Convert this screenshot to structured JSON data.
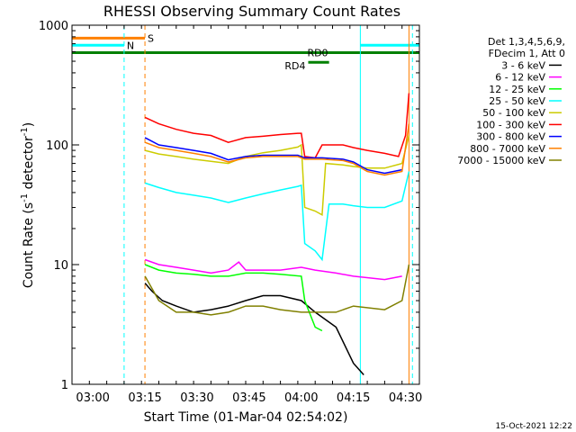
{
  "chart_data": {
    "type": "line",
    "title": "RHESSI Observing Summary Count Rates",
    "xlabel": "Start Time (01-Mar-04 02:54:02)",
    "ylabel_main": "Count Rate (s",
    "ylabel_sup": "-1",
    "ylabel_tail": " detector",
    "ylabel_sup2": "-1",
    "ylabel_close": ")",
    "x_range_min": [
      0,
      100
    ],
    "y_scale": "log",
    "ylim": [
      1,
      1000
    ],
    "x_ticks": [
      {
        "label": "03:00",
        "t": 6
      },
      {
        "label": "03:15",
        "t": 21
      },
      {
        "label": "03:30",
        "t": 36
      },
      {
        "label": "03:45",
        "t": 51
      },
      {
        "label": "04:00",
        "t": 66
      },
      {
        "label": "04:15",
        "t": 81
      },
      {
        "label": "04:30",
        "t": 96
      }
    ],
    "y_ticks": [
      {
        "label": "1",
        "v": 1
      },
      {
        "label": "10",
        "v": 10
      },
      {
        "label": "100",
        "v": 100
      },
      {
        "label": "1000",
        "v": 1000
      }
    ],
    "legend_header": [
      "Det 1,3,4,5,6,9,",
      "FDecim 1, Att 0"
    ],
    "legend_position": "right",
    "series": [
      {
        "name": "3 - 6 keV",
        "color": "#000000",
        "points": [
          [
            21,
            7
          ],
          [
            23,
            6
          ],
          [
            26,
            5
          ],
          [
            30,
            4.5
          ],
          [
            35,
            4
          ],
          [
            40,
            4.2
          ],
          [
            45,
            4.5
          ],
          [
            50,
            5
          ],
          [
            55,
            5.5
          ],
          [
            60,
            5.5
          ],
          [
            66,
            5
          ],
          [
            70,
            4
          ],
          [
            76,
            3
          ],
          [
            81,
            1.5
          ],
          [
            84,
            1.2
          ]
        ]
      },
      {
        "name": "6 - 12 keV",
        "color": "#ff00ff",
        "points": [
          [
            21,
            11
          ],
          [
            25,
            10
          ],
          [
            30,
            9.5
          ],
          [
            35,
            9
          ],
          [
            40,
            8.5
          ],
          [
            45,
            9
          ],
          [
            48,
            10.5
          ],
          [
            50,
            9
          ],
          [
            55,
            9
          ],
          [
            60,
            9
          ],
          [
            66,
            9.5
          ],
          [
            70,
            9
          ],
          [
            76,
            8.5
          ],
          [
            81,
            8
          ],
          [
            90,
            7.5
          ],
          [
            95,
            8
          ]
        ]
      },
      {
        "name": "12 - 25 keV",
        "color": "#00ff00",
        "points": [
          [
            21,
            10
          ],
          [
            25,
            9
          ],
          [
            30,
            8.5
          ],
          [
            35,
            8.3
          ],
          [
            40,
            8
          ],
          [
            45,
            8
          ],
          [
            50,
            8.5
          ],
          [
            55,
            8.5
          ],
          [
            60,
            8.3
          ],
          [
            66,
            8
          ],
          [
            67,
            5
          ],
          [
            70,
            3
          ],
          [
            72,
            2.8
          ]
        ]
      },
      {
        "name": "25 - 50 keV",
        "color": "#00ffff",
        "points": [
          [
            21,
            48
          ],
          [
            25,
            44
          ],
          [
            30,
            40
          ],
          [
            35,
            38
          ],
          [
            40,
            36
          ],
          [
            45,
            33
          ],
          [
            50,
            36
          ],
          [
            55,
            39
          ],
          [
            60,
            42
          ],
          [
            65,
            45
          ],
          [
            66,
            46
          ],
          [
            67,
            15
          ],
          [
            70,
            13
          ],
          [
            72,
            11
          ],
          [
            74,
            32
          ],
          [
            78,
            32
          ],
          [
            81,
            31
          ],
          [
            85,
            30
          ],
          [
            90,
            30
          ],
          [
            95,
            34
          ],
          [
            97,
            60
          ]
        ]
      },
      {
        "name": "50 - 100 keV",
        "color": "#cccc00",
        "points": [
          [
            21,
            90
          ],
          [
            25,
            84
          ],
          [
            30,
            80
          ],
          [
            35,
            76
          ],
          [
            40,
            73
          ],
          [
            45,
            70
          ],
          [
            50,
            80
          ],
          [
            55,
            86
          ],
          [
            60,
            90
          ],
          [
            65,
            96
          ],
          [
            66,
            100
          ],
          [
            67,
            30
          ],
          [
            70,
            28
          ],
          [
            72,
            26
          ],
          [
            73,
            70
          ],
          [
            78,
            68
          ],
          [
            81,
            66
          ],
          [
            85,
            64
          ],
          [
            90,
            64
          ],
          [
            95,
            70
          ],
          [
            97,
            120
          ]
        ]
      },
      {
        "name": "100 - 300 keV",
        "color": "#ff0000",
        "points": [
          [
            21,
            170
          ],
          [
            25,
            150
          ],
          [
            30,
            135
          ],
          [
            35,
            125
          ],
          [
            40,
            120
          ],
          [
            45,
            105
          ],
          [
            50,
            115
          ],
          [
            55,
            118
          ],
          [
            60,
            122
          ],
          [
            65,
            125
          ],
          [
            66,
            125
          ],
          [
            67,
            80
          ],
          [
            70,
            78
          ],
          [
            72,
            100
          ],
          [
            78,
            100
          ],
          [
            81,
            95
          ],
          [
            85,
            90
          ],
          [
            90,
            85
          ],
          [
            94,
            80
          ],
          [
            96,
            120
          ],
          [
            97,
            270
          ]
        ]
      },
      {
        "name": "300 - 800 keV",
        "color": "#0000ff",
        "points": [
          [
            21,
            115
          ],
          [
            25,
            100
          ],
          [
            30,
            95
          ],
          [
            35,
            90
          ],
          [
            40,
            85
          ],
          [
            45,
            75
          ],
          [
            50,
            80
          ],
          [
            55,
            82
          ],
          [
            60,
            82
          ],
          [
            65,
            82
          ],
          [
            66,
            80
          ],
          [
            67,
            78
          ],
          [
            72,
            78
          ],
          [
            78,
            76
          ],
          [
            81,
            72
          ],
          [
            85,
            62
          ],
          [
            90,
            58
          ],
          [
            95,
            62
          ]
        ]
      },
      {
        "name": "800 - 7000 keV",
        "color": "#ff8000",
        "points": [
          [
            21,
            105
          ],
          [
            25,
            95
          ],
          [
            30,
            90
          ],
          [
            35,
            85
          ],
          [
            40,
            80
          ],
          [
            45,
            72
          ],
          [
            50,
            78
          ],
          [
            55,
            80
          ],
          [
            60,
            80
          ],
          [
            65,
            80
          ],
          [
            66,
            78
          ],
          [
            67,
            76
          ],
          [
            72,
            76
          ],
          [
            78,
            74
          ],
          [
            81,
            70
          ],
          [
            85,
            60
          ],
          [
            90,
            56
          ],
          [
            95,
            60
          ],
          [
            97,
            150
          ]
        ]
      },
      {
        "name": "7000 - 15000 keV",
        "color": "#808000",
        "points": [
          [
            21,
            8
          ],
          [
            25,
            5
          ],
          [
            30,
            4
          ],
          [
            35,
            4
          ],
          [
            40,
            3.8
          ],
          [
            45,
            4
          ],
          [
            50,
            4.5
          ],
          [
            55,
            4.5
          ],
          [
            60,
            4.2
          ],
          [
            66,
            4
          ],
          [
            70,
            4
          ],
          [
            76,
            4
          ],
          [
            81,
            4.5
          ],
          [
            90,
            4.2
          ],
          [
            95,
            5
          ],
          [
            97,
            10
          ]
        ]
      }
    ],
    "flag_bars": [
      {
        "label": "S",
        "color": "#ff8000",
        "t0": 0,
        "t1": 21,
        "v": 780
      },
      {
        "label": "N",
        "color": "#00ffff",
        "t0": 0,
        "t1": 15,
        "v": 680
      },
      {
        "label": "",
        "color": "#00ffff",
        "t0": 83,
        "t1": 100,
        "v": 680
      },
      {
        "label": "RD0",
        "color": "#008000",
        "t0": 0,
        "t1": 100,
        "v": 590
      },
      {
        "label": "RD4",
        "color": "#008000",
        "t0": 68,
        "t1": 74,
        "v": 490
      }
    ],
    "vlines": [
      {
        "t": 15,
        "color": "#00ffff",
        "dash": true
      },
      {
        "t": 21,
        "color": "#ff8000",
        "dash": true
      },
      {
        "t": 83,
        "color": "#00ffff",
        "dash": false
      },
      {
        "t": 97,
        "color": "#ff8000",
        "dash": false
      },
      {
        "t": 98,
        "color": "#00ffff",
        "dash": true
      }
    ],
    "footer_date": "15-Oct-2021 12:22"
  }
}
